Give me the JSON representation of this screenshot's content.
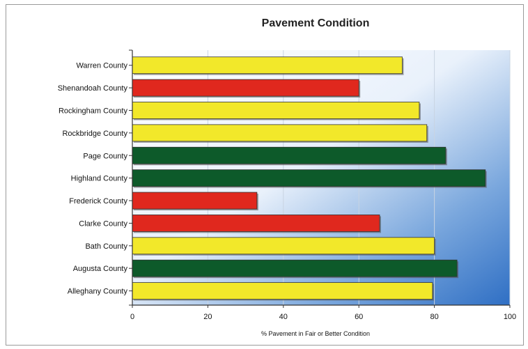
{
  "chart_data": {
    "type": "bar",
    "orientation": "horizontal",
    "title": "Pavement Condition",
    "xlabel": "% Pavement in Fair or Better Condition",
    "ylabel": "",
    "xlim": [
      0,
      100
    ],
    "x_ticks": [
      0,
      20,
      40,
      60,
      80,
      100
    ],
    "grid": true,
    "legend": "none",
    "categories": [
      "Warren County",
      "Shenandoah County",
      "Rockingham County",
      "Rockbridge County",
      "Page County",
      "Highland County",
      "Frederick County",
      "Clarke County",
      "Bath County",
      "Augusta County",
      "Alleghany County"
    ],
    "values": [
      71.5,
      60,
      76,
      78,
      83,
      93.5,
      33,
      65.5,
      80,
      86,
      79.5
    ],
    "bar_colors": [
      "#f2e82a",
      "#e0281e",
      "#f2e82a",
      "#f2e82a",
      "#0d5a2a",
      "#0d5a2a",
      "#e0281e",
      "#e0281e",
      "#f2e82a",
      "#0d5a2a",
      "#f2e82a"
    ]
  }
}
